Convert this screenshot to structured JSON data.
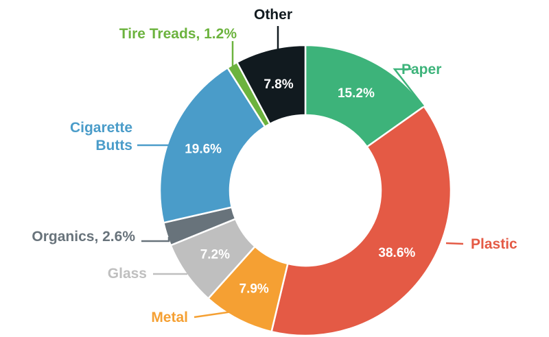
{
  "chart_data": {
    "type": "pie",
    "donut": true,
    "legend": "none",
    "slices": [
      {
        "label": "Paper",
        "value": 15.2,
        "value_label": "15.2%",
        "color": "#3db37a",
        "label_color": "#3db37a"
      },
      {
        "label": "Plastic",
        "value": 38.6,
        "value_label": "38.6%",
        "color": "#e45a45",
        "label_color": "#e45a45"
      },
      {
        "label": "Metal",
        "value": 7.9,
        "value_label": "7.9%",
        "color": "#f5a033",
        "label_color": "#f5a033"
      },
      {
        "label": "Glass",
        "value": 7.2,
        "value_label": "7.2%",
        "color": "#bfbfbf",
        "label_color": "#bfbfbf"
      },
      {
        "label": "Organics, 2.6%",
        "value": 2.6,
        "value_label": "",
        "color": "#68737b",
        "label_color": "#68737b"
      },
      {
        "label": "Cigarette Butts",
        "label_lines": [
          "Cigarette",
          "Butts"
        ],
        "value": 19.6,
        "value_label": "19.6%",
        "color": "#4a9cc9",
        "label_color": "#4a9cc9"
      },
      {
        "label": "Tire Treads, 1.2%",
        "value": 1.2,
        "value_label": "",
        "color": "#6cb33e",
        "label_color": "#6cb33e"
      },
      {
        "label": "Other",
        "value": 7.8,
        "value_label": "7.8%",
        "color": "#111a1f",
        "label_color": "#111a1f"
      }
    ]
  }
}
